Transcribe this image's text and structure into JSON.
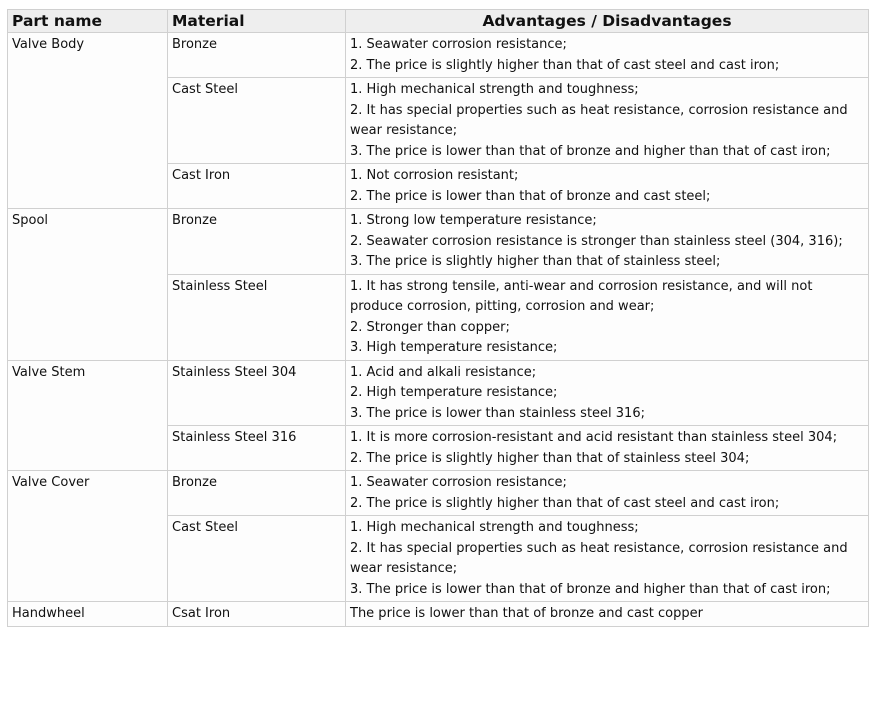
{
  "headers": {
    "part": "Part name",
    "material": "Material",
    "advantages": "Advantages / Disadvantages"
  },
  "parts": [
    {
      "name": "Valve Body",
      "materials": [
        {
          "material": "Bronze",
          "notes": [
            "1. Seawater corrosion resistance;",
            "2. The price is slightly higher than that of cast steel and cast iron;"
          ]
        },
        {
          "material": "Cast Steel",
          "notes": [
            "1. High mechanical strength and toughness;",
            "2. It has special properties such as heat resistance, corrosion resistance and wear resistance;",
            "3. The price is lower than that of bronze and higher than that of cast iron;"
          ]
        },
        {
          "material": "Cast Iron",
          "notes": [
            "1. Not corrosion resistant;",
            "2. The price is lower than that of bronze and cast steel;"
          ]
        }
      ]
    },
    {
      "name": "Spool",
      "materials": [
        {
          "material": "Bronze",
          "notes": [
            "1. Strong low temperature resistance;",
            "2. Seawater corrosion resistance is stronger than stainless steel (304, 316);",
            "3. The price is slightly higher than that of stainless steel;"
          ]
        },
        {
          "material": "Stainless Steel",
          "notes": [
            "1. It has strong tensile, anti-wear and corrosion resistance, and will not produce corrosion, pitting, corrosion and wear;",
            "2. Stronger than copper;",
            "3. High temperature resistance;"
          ]
        }
      ]
    },
    {
      "name": "Valve Stem",
      "materials": [
        {
          "material": "Stainless Steel 304",
          "notes": [
            "1. Acid and alkali resistance;",
            "2. High temperature resistance;",
            "3. The price is lower than stainless steel 316;"
          ]
        },
        {
          "material": "Stainless Steel 316",
          "notes": [
            "1. It is more corrosion-resistant and acid resistant than stainless steel 304;",
            "2. The price is slightly higher than that of stainless steel 304;"
          ]
        }
      ]
    },
    {
      "name": "Valve Cover",
      "materials": [
        {
          "material": "Bronze",
          "notes": [
            "1. Seawater corrosion resistance;",
            "2. The price is slightly higher than that of cast steel and cast iron;"
          ]
        },
        {
          "material": "Cast Steel",
          "notes": [
            "1. High mechanical strength and toughness;",
            "2. It has special properties such as heat resistance, corrosion resistance and wear resistance;",
            "3. The price is lower than that of bronze and higher than that of cast iron;"
          ]
        }
      ]
    },
    {
      "name": "Handwheel",
      "materials": [
        {
          "material": "Csat Iron",
          "notes": [
            "The price is lower than that of bronze and cast copper"
          ]
        }
      ]
    }
  ]
}
